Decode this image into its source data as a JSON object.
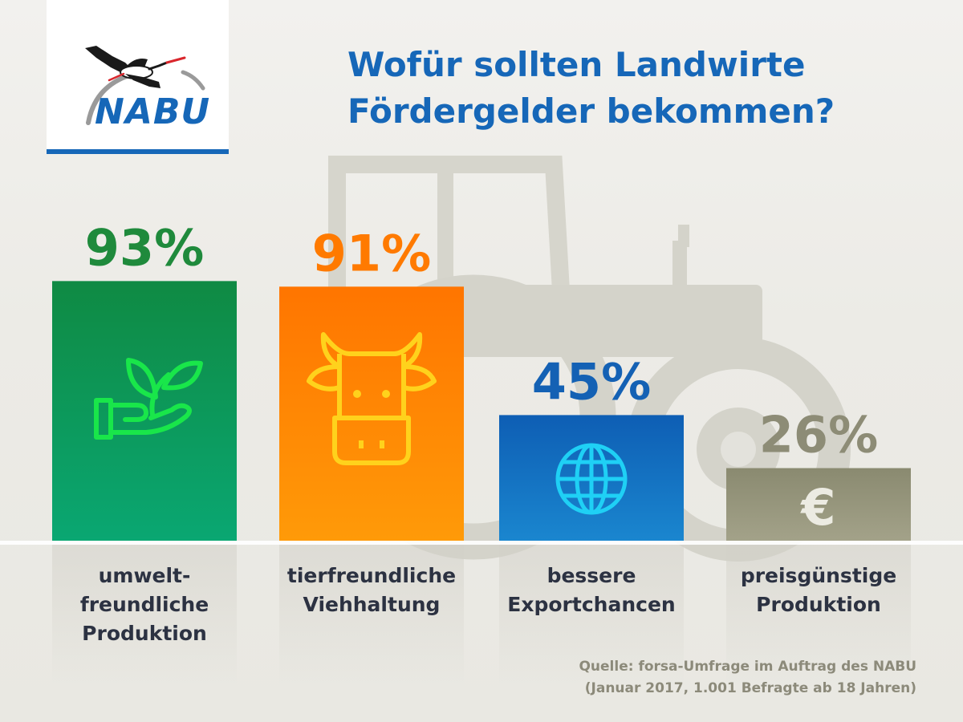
{
  "logo": {
    "text": "NABU",
    "icon": "stork-icon"
  },
  "title_lines": [
    "Wofür sollten Landwirte",
    "Fördergelder bekommen?"
  ],
  "chart_data": {
    "type": "bar",
    "title": "Wofür sollten Landwirte Fördergelder bekommen?",
    "xlabel": "",
    "ylabel": "",
    "ylim": [
      0,
      100
    ],
    "grid": false,
    "legend": "none",
    "categories": [
      "umwelt-freundliche Produktion",
      "tierfreundliche Viehhaltung",
      "bessere Exportchancen",
      "preisgünstige Produktion"
    ],
    "values": [
      93,
      91,
      45,
      26
    ],
    "value_labels": [
      "93%",
      "91%",
      "45%",
      "26%"
    ],
    "category_lines": [
      [
        "umwelt-",
        "freundliche",
        "Produktion"
      ],
      [
        "tierfreundliche",
        "Viehhaltung"
      ],
      [
        "bessere",
        "Exportchancen"
      ],
      [
        "preisgünstige",
        "Produktion"
      ]
    ],
    "icons": [
      "plant-in-hand-icon",
      "cow-head-icon",
      "globe-icon",
      "euro-icon"
    ],
    "colors": {
      "bar_top": [
        "#0f8a43",
        "#ff7500",
        "#0e5eb4",
        "#8a8a70"
      ],
      "bar_bottom": [
        "#0aa772",
        "#ff9a08",
        "#1a86cf",
        "#a3a289"
      ],
      "value_label": [
        "#1f8a3c",
        "#ff7a00",
        "#1461b4",
        "#8d8c76"
      ],
      "icon": [
        "#19e64a",
        "#ffd21c",
        "#1fd0f5",
        "#ecebe2"
      ]
    }
  },
  "source_lines": [
    "Quelle: forsa-Umfrage im Auftrag des NABU",
    "(Januar 2017, 1.001 Befragte ab 18 Jahren)"
  ],
  "colors": {
    "brand_blue": "#1667b8",
    "label_dark": "#2c3242",
    "source_gray": "#8c8a7a"
  }
}
